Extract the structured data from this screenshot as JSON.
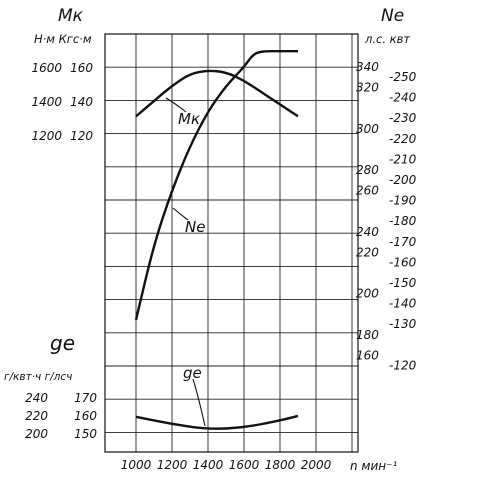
{
  "chart_data": {
    "type": "line",
    "x": {
      "label": "n мин⁻¹",
      "ticks": [
        1000,
        1200,
        1400,
        1600,
        1800,
        2000
      ],
      "range": [
        1000,
        2100
      ]
    },
    "axes_labels": {
      "left_top_symbol": "Mк",
      "left_top_units": "Н·м  Кгс·м",
      "left_bottom_symbol": "ge",
      "left_bottom_units": "г/квт·ч  г/лсч",
      "right_symbol": "Ne",
      "right_units": "л.с.  квт"
    },
    "left_top_ticks": [
      {
        "nm": "1600",
        "kgsm": "160",
        "value": 160
      },
      {
        "nm": "1400",
        "kgsm": "140",
        "value": 140
      },
      {
        "nm": "1200",
        "kgsm": "120",
        "value": 120
      }
    ],
    "left_bottom_ticks": [
      {
        "gkvt": "240",
        "glsch": "170",
        "value": 170
      },
      {
        "gkvt": "220",
        "glsch": "160",
        "value": 160
      },
      {
        "gkvt": "200",
        "glsch": "150",
        "value": 150
      }
    ],
    "right_ticks": [
      {
        "ls": "340",
        "kvt": "-250"
      },
      {
        "ls": "320",
        "kvt": "-240"
      },
      {
        "ls": "",
        "kvt": "-230"
      },
      {
        "ls": "300",
        "kvt": "-220"
      },
      {
        "ls": "",
        "kvt": "-210"
      },
      {
        "ls": "280",
        "kvt": "-200"
      },
      {
        "ls": "260",
        "kvt": "-190"
      },
      {
        "ls": "",
        "kvt": "-180"
      },
      {
        "ls": "240",
        "kvt": "-170"
      },
      {
        "ls": "220",
        "kvt": "-160"
      },
      {
        "ls": "",
        "kvt": "-150"
      },
      {
        "ls": "200",
        "kvt": "-140"
      },
      {
        "ls": "",
        "kvt": "-130"
      },
      {
        "ls": "180",
        "kvt": ""
      },
      {
        "ls": "160",
        "kvt": "-120"
      }
    ],
    "series": [
      {
        "name": "Mк",
        "unit": "кгс·м",
        "x": [
          1000,
          1100,
          1200,
          1300,
          1400,
          1500,
          1600,
          1700,
          1800,
          1900
        ],
        "y": [
          131,
          140,
          149,
          156,
          158,
          157,
          152,
          145,
          138,
          131
        ]
      },
      {
        "name": "Ne",
        "unit": "л.с.",
        "x": [
          1000,
          1100,
          1200,
          1300,
          1400,
          1500,
          1600,
          1650,
          1700,
          1800,
          1900
        ],
        "y": [
          180,
          228,
          262,
          290,
          312,
          328,
          340,
          348,
          350,
          350,
          350
        ]
      },
      {
        "name": "ge",
        "unit": "г/л.с.ч",
        "x": [
          1000,
          1200,
          1400,
          1600,
          1800,
          1900
        ],
        "y": [
          159,
          155,
          152,
          153,
          157,
          159.5
        ]
      }
    ],
    "grid": true
  }
}
